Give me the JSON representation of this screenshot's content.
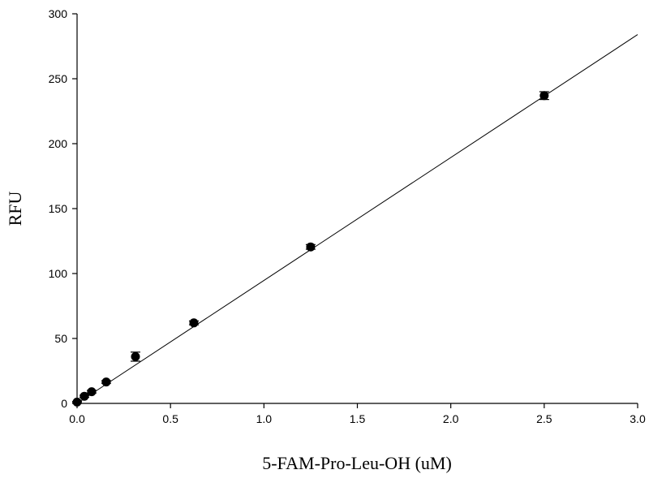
{
  "chart_data": {
    "type": "scatter",
    "title": "",
    "xlabel": "5-FAM-Pro-Leu-OH (uM)",
    "ylabel": "RFU",
    "xlim": [
      0,
      3.0
    ],
    "ylim": [
      0,
      300
    ],
    "x_ticks": [
      "0.0",
      "0.5",
      "1.0",
      "1.5",
      "2.0",
      "2.5",
      "3.0"
    ],
    "y_ticks": [
      "0",
      "50",
      "100",
      "150",
      "200",
      "250",
      "300"
    ],
    "grid": false,
    "legend": "none",
    "points": [
      {
        "x": 0.0,
        "y": 1,
        "err": 0.5
      },
      {
        "x": 0.039,
        "y": 5.5,
        "err": 0.8
      },
      {
        "x": 0.078,
        "y": 9,
        "err": 1.0
      },
      {
        "x": 0.156,
        "y": 16.5,
        "err": 1.0
      },
      {
        "x": 0.3125,
        "y": 36,
        "err": 3.5
      },
      {
        "x": 0.625,
        "y": 62,
        "err": 1.5
      },
      {
        "x": 1.25,
        "y": 120.5,
        "err": 1.8
      },
      {
        "x": 2.5,
        "y": 237,
        "err": 3.0
      }
    ],
    "fit_line": {
      "x": [
        0,
        3.0
      ],
      "y": [
        0,
        284
      ]
    }
  }
}
